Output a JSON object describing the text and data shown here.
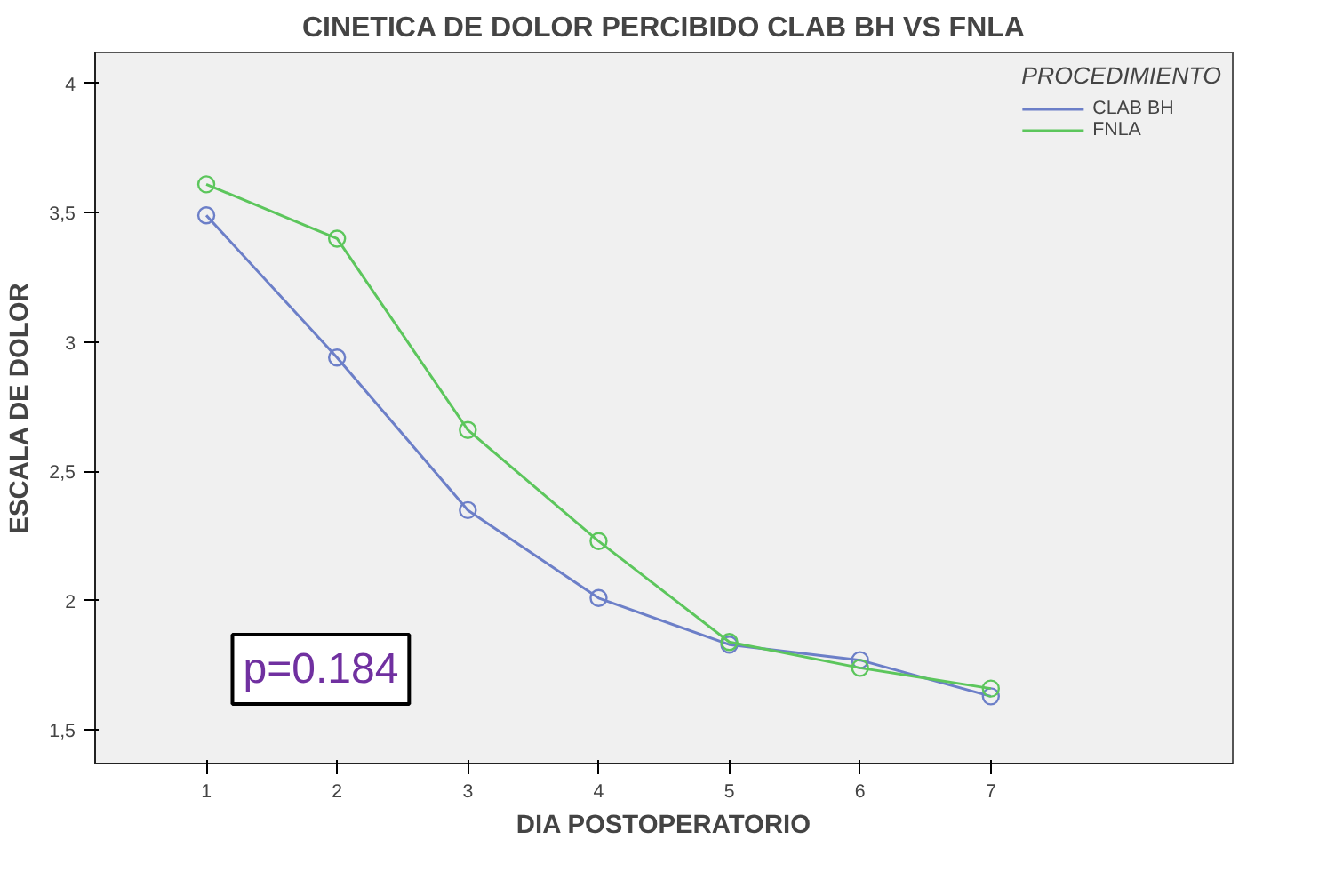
{
  "chart_data": {
    "type": "line",
    "title": "CINETICA DE DOLOR PERCIBIDO CLAB BH VS FNLA",
    "xlabel": "DIA POSTOPERATORIO",
    "ylabel": "ESCALA DE DOLOR",
    "legend_title": "PROCEDIMIENTO",
    "x": [
      1,
      2,
      3,
      4,
      5,
      6,
      7
    ],
    "series": [
      {
        "name": "CLAB BH",
        "color": "#6c7fc8",
        "values": [
          3.49,
          2.94,
          2.35,
          2.01,
          1.83,
          1.77,
          1.63
        ]
      },
      {
        "name": "FNLA",
        "color": "#5cc65c",
        "values": [
          3.61,
          3.4,
          2.66,
          2.23,
          1.84,
          1.74,
          1.66
        ]
      }
    ],
    "xlim": [
      0.15,
      8.85
    ],
    "ylim": [
      1.37,
      4.12
    ],
    "xticks": [
      1,
      2,
      3,
      4,
      5,
      6,
      7
    ],
    "yticks": [
      {
        "value": 1.5,
        "label": "1,5"
      },
      {
        "value": 2,
        "label": "2"
      },
      {
        "value": 2.5,
        "label": "2,5"
      },
      {
        "value": 3,
        "label": "3"
      },
      {
        "value": 3.5,
        "label": "3,5"
      },
      {
        "value": 4,
        "label": "4"
      }
    ],
    "annotations": [
      "p=0.184"
    ],
    "marker": "circle",
    "legend": "top right",
    "grid": false,
    "line_style": "solid"
  }
}
